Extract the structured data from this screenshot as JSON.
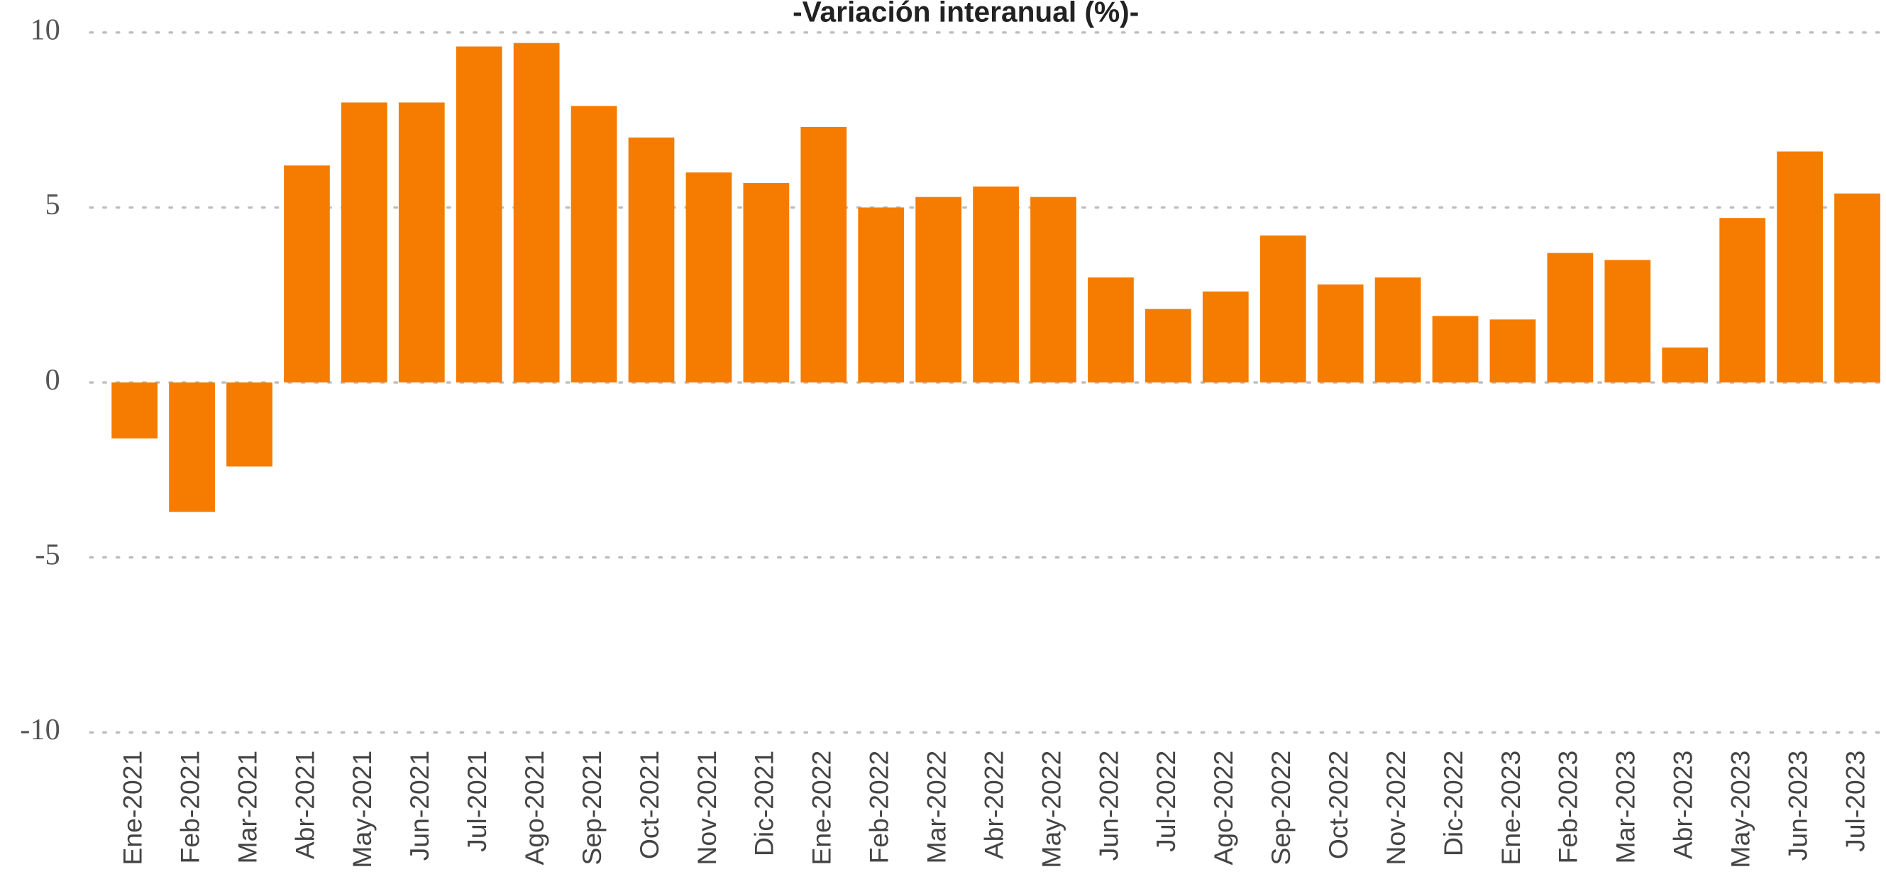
{
  "chart_data": {
    "type": "bar",
    "title": "-Variación interanual (%)-",
    "categories": [
      "Ene-2021",
      "Feb-2021",
      "Mar-2021",
      "Abr-2021",
      "May-2021",
      "Jun-2021",
      "Jul-2021",
      "Ago-2021",
      "Sep-2021",
      "Oct-2021",
      "Nov-2021",
      "Dic-2021",
      "Ene-2022",
      "Feb-2022",
      "Mar-2022",
      "Abr-2022",
      "May-2022",
      "Jun-2022",
      "Jul-2022",
      "Ago-2022",
      "Sep-2022",
      "Oct-2022",
      "Nov-2022",
      "Dic-2022",
      "Ene-2023",
      "Feb-2023",
      "Mar-2023",
      "Abr-2023",
      "May-2023",
      "Jun-2023",
      "Jul-2023"
    ],
    "values": [
      -1.6,
      -3.7,
      -2.4,
      6.2,
      8.0,
      8.0,
      9.6,
      9.7,
      7.9,
      7.0,
      6.0,
      5.7,
      7.3,
      5.0,
      5.3,
      5.6,
      5.3,
      3.0,
      2.1,
      2.6,
      4.2,
      2.8,
      3.0,
      1.9,
      1.8,
      3.7,
      3.5,
      1.0,
      4.7,
      6.6,
      5.4
    ],
    "color": "#f57c00",
    "ylim": [
      -10,
      10
    ],
    "yticks": [
      -10,
      -5,
      0,
      5,
      10
    ],
    "grid": true
  }
}
